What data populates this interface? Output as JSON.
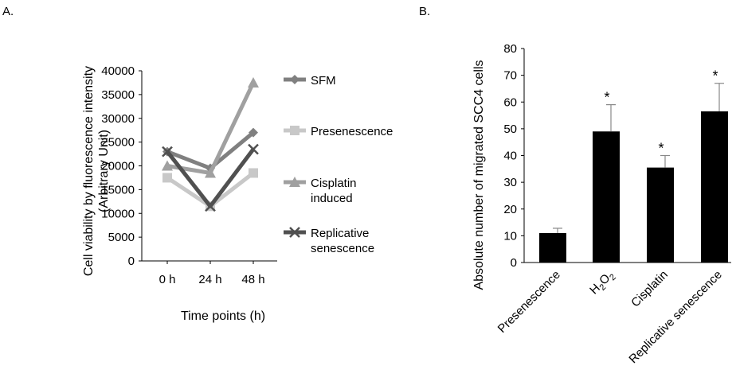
{
  "panels": {
    "a_label": "A.",
    "b_label": "B."
  },
  "chart_data": [
    {
      "type": "line",
      "xlabel": "Time points (h)",
      "ylabel": [
        "Cell viability by fluorescence intensity",
        "(Arbitrary Unit)"
      ],
      "categories": [
        "0 h",
        "24 h",
        "48 h"
      ],
      "ylim": [
        0,
        40000
      ],
      "yticks": [
        0,
        5000,
        10000,
        15000,
        20000,
        25000,
        30000,
        35000,
        40000
      ],
      "grid": false,
      "legend_placement": "right",
      "series": [
        {
          "name": [
            "SFM"
          ],
          "values": [
            23000,
            19500,
            27000
          ],
          "color": "#808080",
          "marker": "diamond"
        },
        {
          "name": [
            "Presenescence"
          ],
          "values": [
            17500,
            11500,
            18500
          ],
          "color": "#c8c8c8",
          "marker": "square"
        },
        {
          "name": [
            "Cisplatin",
            "induced"
          ],
          "values": [
            20000,
            18500,
            37500
          ],
          "color": "#a0a0a0",
          "marker": "triangle"
        },
        {
          "name": [
            "Replicative",
            "senescence"
          ],
          "values": [
            23000,
            11500,
            23500
          ],
          "color": "#505050",
          "marker": "x"
        }
      ]
    },
    {
      "type": "bar",
      "ylabel": "Absolute number of migrated SCC4 cells",
      "categories": [
        {
          "text": "Presenescence"
        },
        {
          "text": "H",
          "sub": "2",
          "text2": "O",
          "sub2": "2"
        },
        {
          "text": "Cisplatin"
        },
        {
          "text": "Replicative senescence"
        }
      ],
      "values": [
        11,
        49,
        35.5,
        56.5
      ],
      "errors": [
        1.8,
        10,
        4.5,
        10.5
      ],
      "significance": [
        "",
        "*",
        "*",
        "*"
      ],
      "ylim": [
        0,
        80
      ],
      "yticks": [
        0,
        10,
        20,
        30,
        40,
        50,
        60,
        70,
        80
      ],
      "bar_color": "#000000",
      "grid": false
    }
  ]
}
